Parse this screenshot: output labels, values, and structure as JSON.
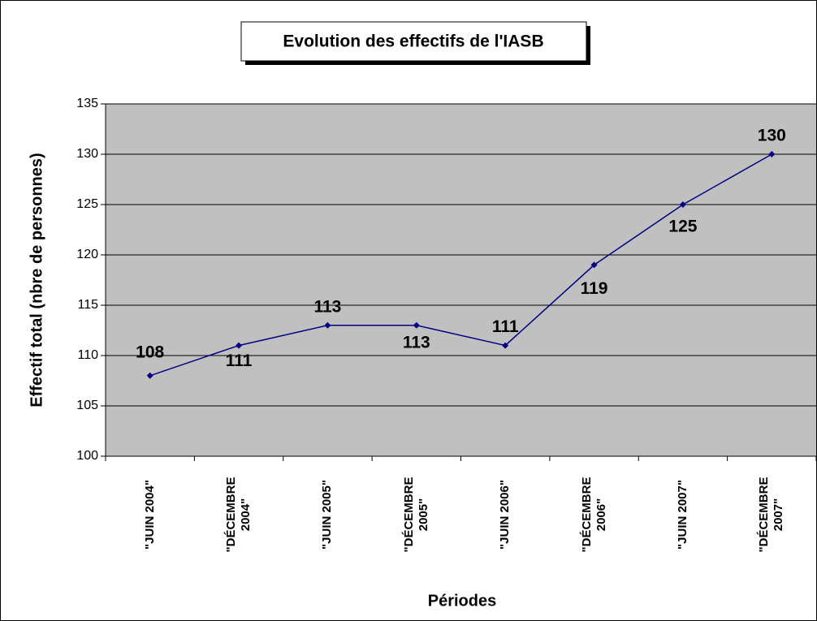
{
  "chart_data": {
    "type": "line",
    "title": "Evolution des effectifs de l'IASB",
    "y_label": "Effectif total (nbre de personnes)",
    "x_label": "Périodes",
    "categories": [
      "\"JUIN 2004\"",
      "\"DÉCEMBRE 2004\"",
      "\"JUIN 2005\"",
      "\"DÉCEMBRE 2005\"",
      "\"JUIN 2006\"",
      "\"DÉCEMBRE 2006\"",
      "\"JUIN 2007\"",
      "\"DÉCEMBRE 2007\""
    ],
    "series": [
      {
        "name": "Effectif total",
        "color": "#000080",
        "values": [
          108,
          111,
          113,
          113,
          111,
          119,
          125,
          130
        ]
      }
    ],
    "ylim": [
      100,
      135
    ],
    "yticks": [
      100,
      105,
      110,
      115,
      120,
      125,
      130,
      135
    ],
    "grid": true
  }
}
